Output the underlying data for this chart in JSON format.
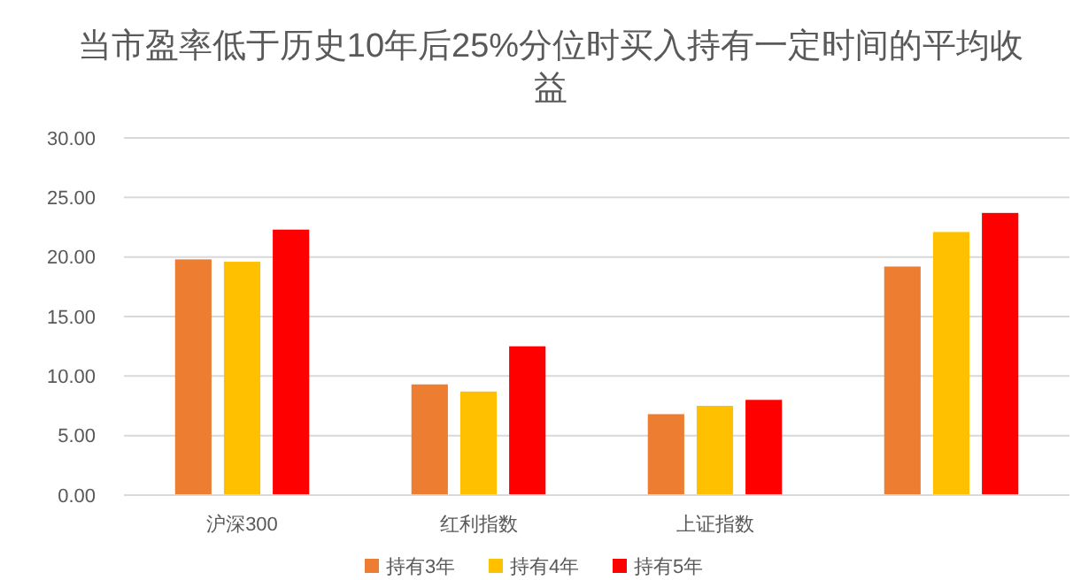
{
  "chart_data": {
    "type": "bar",
    "title": "当市盈率低于历史10年后25%分位时买入持有一定时间的平均收益",
    "categories": [
      "沪深300",
      "红利指数",
      "上证指数",
      null
    ],
    "series": [
      {
        "name": "持有3年",
        "color": "#ed7d31",
        "values": [
          19.8,
          9.3,
          6.8,
          19.2
        ]
      },
      {
        "name": "持有4年",
        "color": "#ffc000",
        "values": [
          19.6,
          8.7,
          7.5,
          22.1
        ]
      },
      {
        "name": "持有5年",
        "color": "#ff0000",
        "values": [
          22.3,
          12.5,
          8.0,
          23.7
        ]
      }
    ],
    "ylim": [
      0,
      30
    ],
    "yticks": [
      {
        "value": 0,
        "label": "0.00"
      },
      {
        "value": 5,
        "label": "5.00"
      },
      {
        "value": 10,
        "label": "10.00"
      },
      {
        "value": 15,
        "label": "15.00"
      },
      {
        "value": 20,
        "label": "20.00"
      },
      {
        "value": 25,
        "label": "25.00"
      },
      {
        "value": 30,
        "label": "30.00"
      }
    ],
    "grid": true,
    "legend": "bottom"
  }
}
